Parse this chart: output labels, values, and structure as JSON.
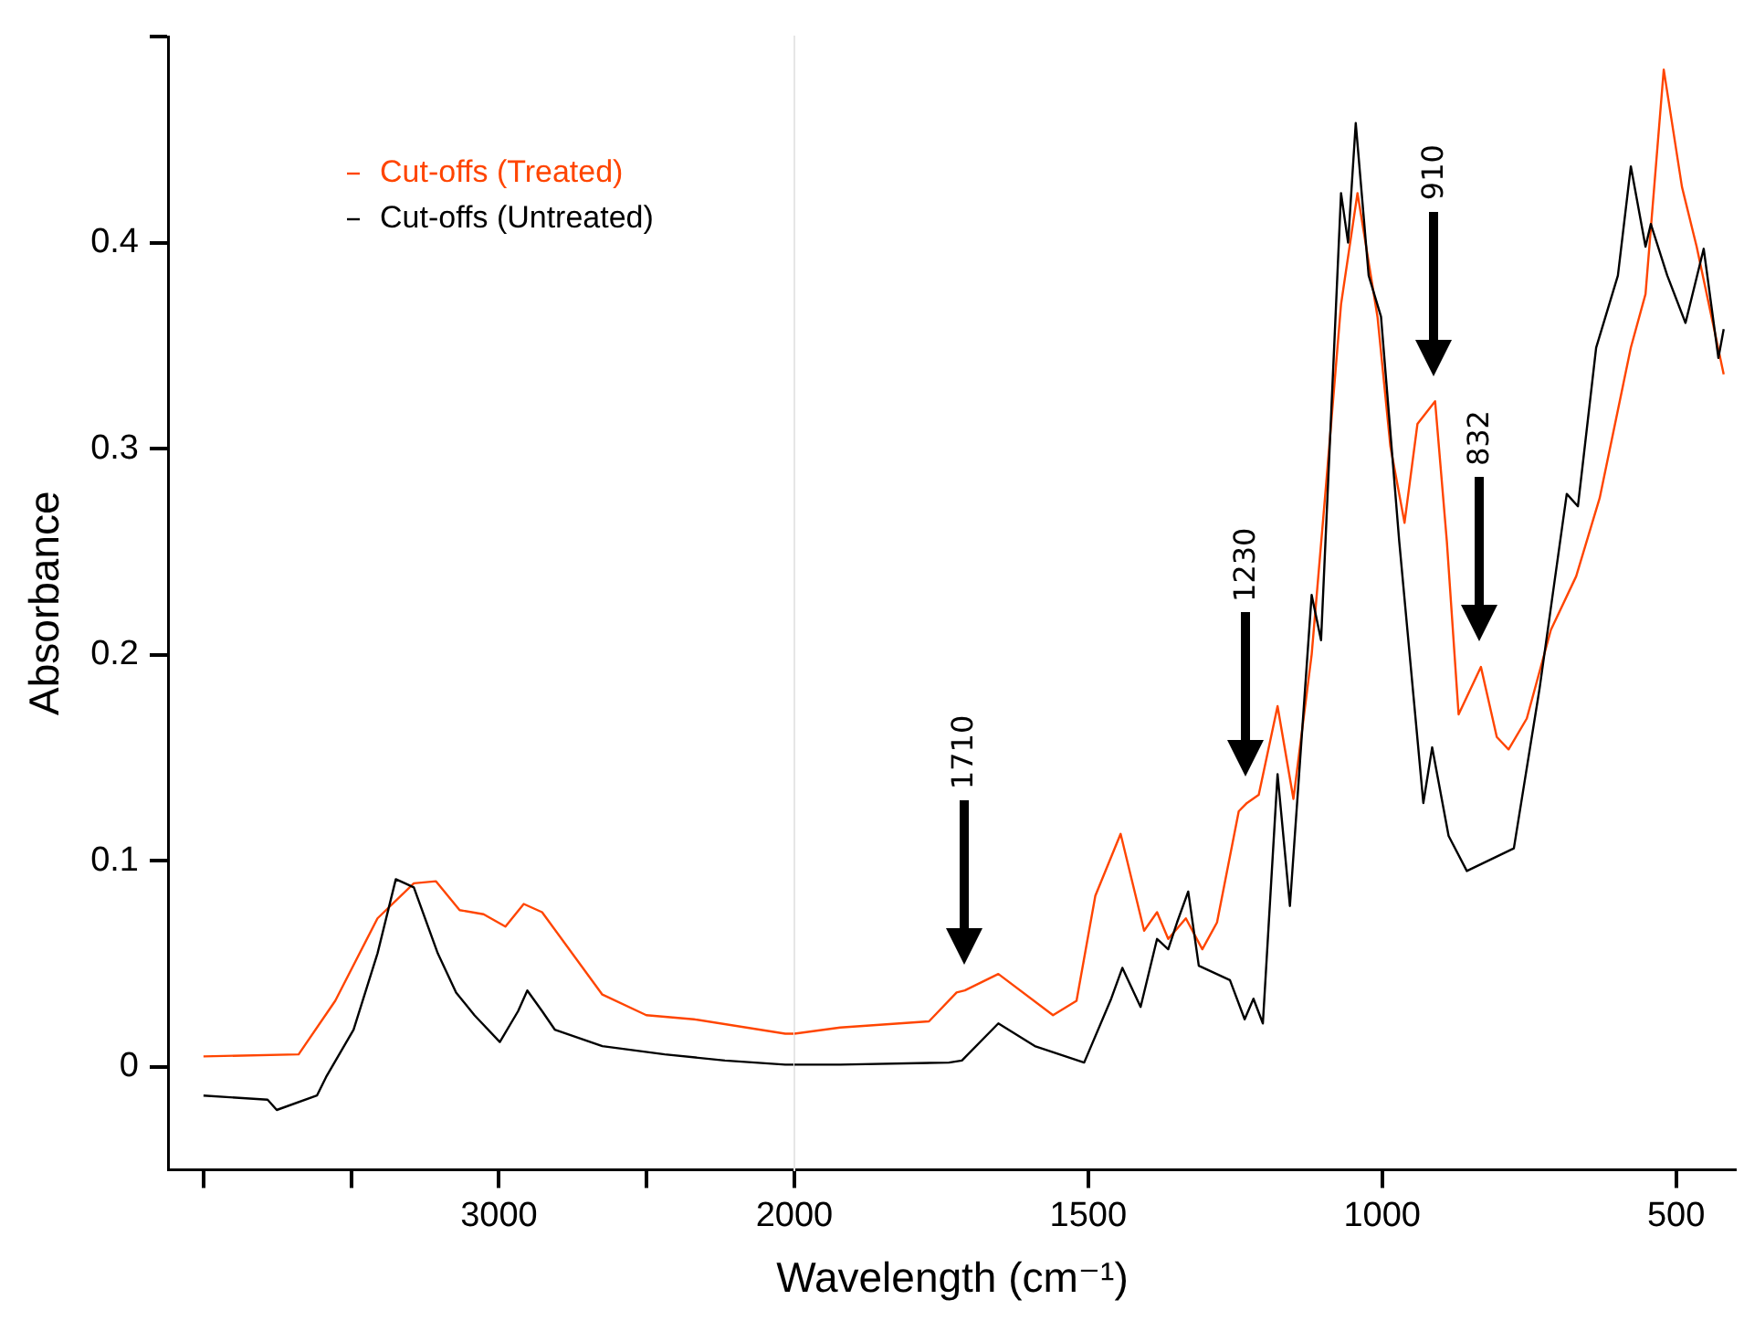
{
  "chart_data": [
    {
      "type": "line",
      "ylabel": "Absorbance",
      "xlim": [
        4120,
        2000
      ],
      "xticks": [
        {
          "value": 4000,
          "label": null
        },
        {
          "value": 3500,
          "label": null
        },
        3000,
        {
          "value": 2500,
          "label": null
        },
        2000
      ],
      "ylim": [
        -0.05,
        0.5
      ],
      "yticks": [
        0,
        0.1,
        0.2,
        0.3,
        0.4,
        {
          "value": 0.5,
          "label": null
        }
      ],
      "grid": false,
      "legend": "top left",
      "series": [
        {
          "name": "Cut-offs (Treated)",
          "color": "#ff4500",
          "x": [
            4000,
            3678,
            3554,
            3411,
            3288,
            3213,
            3133,
            3052,
            2978,
            2916,
            2854,
            2650,
            2501,
            2340,
            2031,
            2000
          ],
          "values": [
            0.005,
            0.006,
            0.032,
            0.072,
            0.089,
            0.09,
            0.076,
            0.074,
            0.068,
            0.079,
            0.075,
            0.035,
            0.025,
            0.023,
            0.016,
            0.016
          ]
        },
        {
          "name": "Cut-offs (Untreated)",
          "color": "#000000",
          "x": [
            4000,
            3783,
            3752,
            3616,
            3585,
            3492,
            3411,
            3349,
            3318,
            3288,
            3207,
            3145,
            3083,
            2997,
            2935,
            2904,
            2854,
            2811,
            2650,
            2439,
            2235,
            2031,
            2000
          ],
          "values": [
            -0.014,
            -0.016,
            -0.021,
            -0.014,
            -0.005,
            0.018,
            0.055,
            0.091,
            0.089,
            0.087,
            0.055,
            0.036,
            0.025,
            0.012,
            0.027,
            0.037,
            0.027,
            0.018,
            0.01,
            0.006,
            0.003,
            0.001,
            0.001
          ]
        }
      ]
    },
    {
      "type": "line",
      "xlabel": "Wavelength (cm⁻¹)",
      "xlim": [
        2000,
        400
      ],
      "xticks": [
        1500,
        1000,
        500
      ],
      "ylim": [
        -0.05,
        0.5
      ],
      "tick_labels": "x",
      "grid": false,
      "series": [
        {
          "color": "#ff4500",
          "x": [
            2000,
            1922,
            1771,
            1724,
            1710,
            1653,
            1560,
            1520,
            1488,
            1445,
            1405,
            1383,
            1364,
            1334,
            1306,
            1281,
            1244,
            1230,
            1210,
            1178,
            1151,
            1120,
            1095,
            1070,
            1042,
            1008,
            986,
            962,
            940,
            910,
            890,
            870,
            832,
            805,
            785,
            754,
            713,
            670,
            630,
            577,
            552,
            521,
            490,
            465,
            419
          ],
          "values": [
            0.016,
            0.019,
            0.022,
            0.036,
            0.037,
            0.045,
            0.025,
            0.032,
            0.083,
            0.113,
            0.066,
            0.075,
            0.062,
            0.072,
            0.057,
            0.07,
            0.124,
            0.128,
            0.132,
            0.175,
            0.13,
            0.2,
            0.284,
            0.37,
            0.424,
            0.364,
            0.301,
            0.264,
            0.312,
            0.323,
            0.255,
            0.171,
            0.194,
            0.16,
            0.154,
            0.169,
            0.212,
            0.238,
            0.276,
            0.349,
            0.375,
            0.484,
            0.427,
            0.398,
            0.336
          ]
        },
        {
          "color": "#000000",
          "x": [
            2000,
            1922,
            1737,
            1715,
            1653,
            1591,
            1507,
            1461,
            1442,
            1411,
            1383,
            1364,
            1349,
            1330,
            1312,
            1259,
            1234,
            1219,
            1203,
            1178,
            1157,
            1120,
            1104,
            1070,
            1058,
            1045,
            1023,
            1002,
            971,
            930,
            915,
            887,
            856,
            776,
            732,
            686,
            667,
            636,
            599,
            577,
            552,
            543,
            515,
            484,
            453,
            428,
            419
          ],
          "values": [
            0.001,
            0.001,
            0.002,
            0.003,
            0.021,
            0.01,
            0.002,
            0.033,
            0.048,
            0.029,
            0.062,
            0.057,
            0.07,
            0.085,
            0.049,
            0.042,
            0.023,
            0.033,
            0.021,
            0.142,
            0.078,
            0.229,
            0.207,
            0.424,
            0.4,
            0.458,
            0.384,
            0.364,
            0.255,
            0.128,
            0.155,
            0.112,
            0.095,
            0.106,
            0.184,
            0.278,
            0.272,
            0.349,
            0.384,
            0.437,
            0.398,
            0.409,
            0.384,
            0.361,
            0.397,
            0.344,
            0.358
          ]
        }
      ],
      "annotations": [
        "1710",
        "1230",
        "910",
        "832"
      ]
    }
  ]
}
